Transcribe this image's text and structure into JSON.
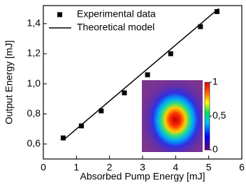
{
  "chart_data": {
    "type": "scatter",
    "xlabel": "Absorbed Pump Energy [mJ]",
    "ylabel": "Output Energy [mJ]",
    "xlim": [
      0,
      6
    ],
    "ylim": [
      0.5,
      1.52
    ],
    "xticks": [
      0,
      1,
      2,
      3,
      4,
      5,
      6
    ],
    "yticks": [
      {
        "value": 0.6,
        "label": "0,6"
      },
      {
        "value": 0.8,
        "label": "0,8"
      },
      {
        "value": 1.0,
        "label": "1,0"
      },
      {
        "value": 1.2,
        "label": "1,2"
      },
      {
        "value": 1.4,
        "label": "1,4"
      }
    ],
    "legend": "top-left",
    "series": [
      {
        "name": "Experimental data",
        "type": "scatter",
        "color": "#000000",
        "x": [
          0.6,
          1.15,
          1.75,
          2.45,
          3.15,
          3.85,
          4.75,
          5.25
        ],
        "values": [
          0.64,
          0.72,
          0.82,
          0.94,
          1.06,
          1.2,
          1.38,
          1.48
        ]
      },
      {
        "name": "Theoretical model",
        "type": "line",
        "color": "#000000",
        "x": [
          0.6,
          5.3
        ],
        "values": [
          0.625,
          1.5
        ]
      }
    ],
    "inset": {
      "clim": [
        0,
        1
      ],
      "colorbar_ticks": [
        0,
        {
          "value": 0.5,
          "label": "0,5"
        },
        1
      ]
    }
  }
}
